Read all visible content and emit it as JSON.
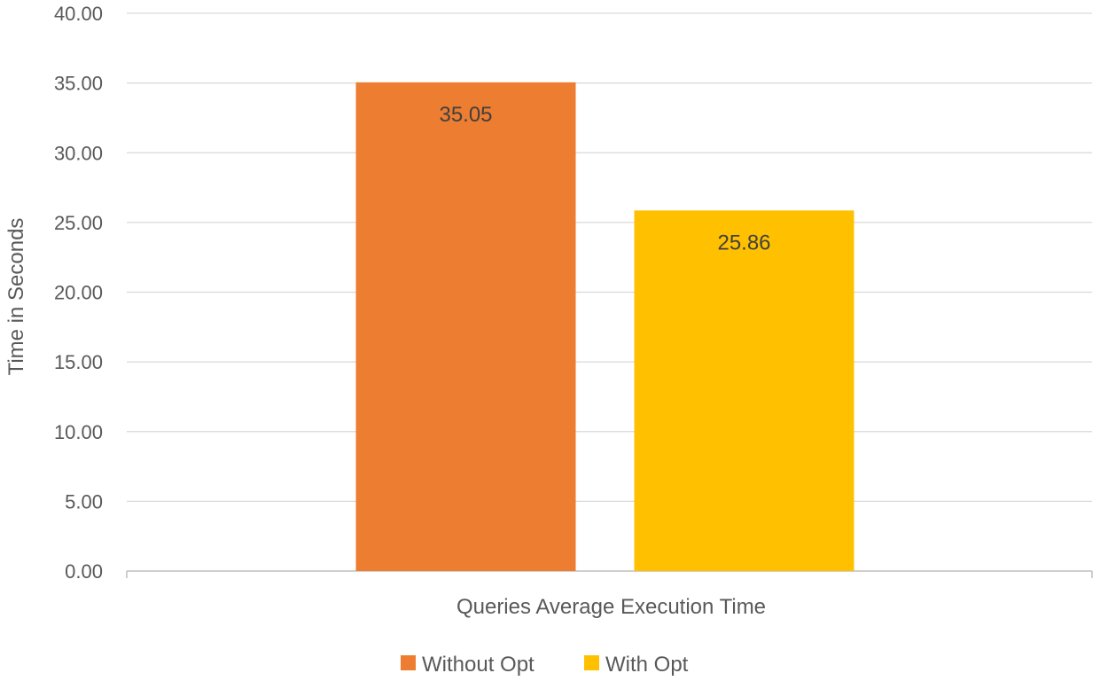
{
  "chart_data": {
    "type": "bar",
    "categories": [
      "Queries Average Execution Time"
    ],
    "series": [
      {
        "name": "Without Opt",
        "values": [
          35.05
        ],
        "color": "#ED7D31"
      },
      {
        "name": "With Opt",
        "values": [
          25.86
        ],
        "color": "#FFC000"
      }
    ],
    "data_labels": [
      "35.05",
      "25.86"
    ],
    "title": "",
    "xlabel": "",
    "ylabel": "Time in Seconds",
    "ylim": [
      0,
      40
    ],
    "yticks": [
      0,
      5,
      10,
      15,
      20,
      25,
      30,
      35,
      40
    ],
    "ytick_labels": [
      "0.00",
      "5.00",
      "10.00",
      "15.00",
      "20.00",
      "25.00",
      "30.00",
      "35.00",
      "40.00"
    ],
    "grid": true,
    "legend_position": "bottom"
  }
}
